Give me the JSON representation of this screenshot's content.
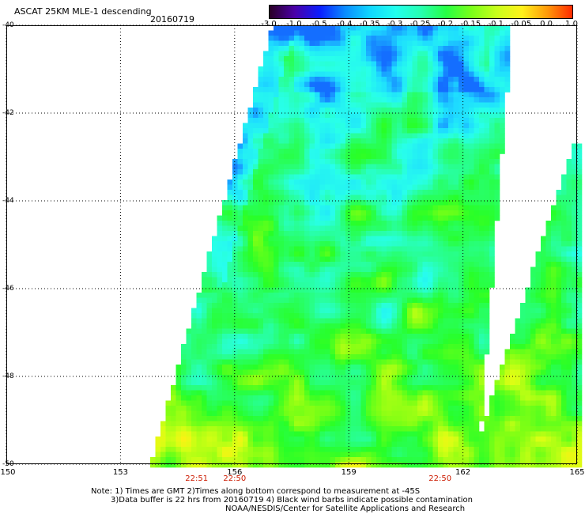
{
  "header": {
    "title": "ASCAT 25KM MLE-1 descending",
    "date": "20160719"
  },
  "colorbar": {
    "labels": [
      "-3.0",
      "-1.0",
      "-0.5",
      "-0.4",
      "-0.35",
      "-0.3",
      "-0.25",
      "-0.2",
      "-0.15",
      "-0.1",
      "-0.05",
      "0.0",
      "1.0"
    ],
    "colors": [
      "#2a0026",
      "#4a00a8",
      "#0a1eff",
      "#0a8cff",
      "#10d8ff",
      "#22ffee",
      "#26ffb0",
      "#26ff44",
      "#7aff1a",
      "#c8ff1a",
      "#fff21a",
      "#ff9a0a",
      "#ff2a00"
    ]
  },
  "map": {
    "lat_range": [
      -50,
      -40
    ],
    "lon_range": [
      150,
      165
    ],
    "lat_labels": [
      "-40",
      "-42",
      "-44",
      "-46",
      "-48",
      "-50"
    ],
    "lon_labels": [
      "150",
      "153",
      "156",
      "159",
      "162",
      "165"
    ],
    "grid": true
  },
  "time_labels": [
    {
      "lon": 155,
      "text": "22:51"
    },
    {
      "lon": 156,
      "text": "22:50"
    },
    {
      "lon": 161.4,
      "text": "22:50"
    }
  ],
  "note": {
    "line1": "Note: 1) Times are GMT 2)Times along bottom correspond to measurement at -45S",
    "line2": "3)Data buffer is 22 hrs from 20160719 4) Black wind barbs indicate possible contamination",
    "line3": "NOAA/NESDIS/Center for Satellite Applications and Research"
  }
}
